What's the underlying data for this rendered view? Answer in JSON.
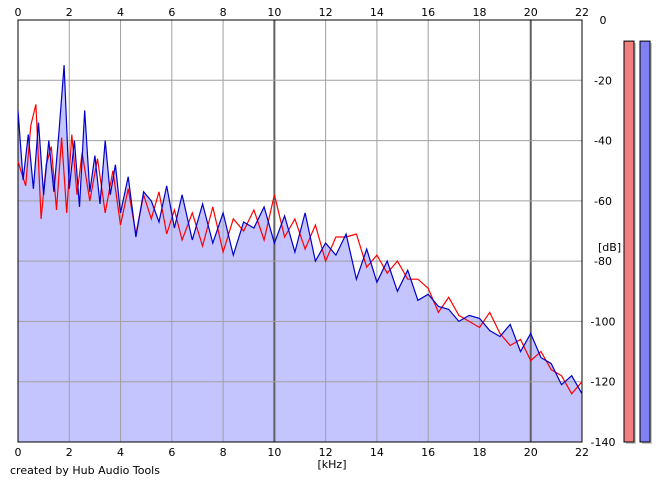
{
  "credit": "created by Hub Audio Tools",
  "chart_data": {
    "type": "area",
    "xlabel": "[kHz]",
    "ylabel": "[dB]",
    "xlim": [
      0,
      22
    ],
    "ylim": [
      -140,
      0
    ],
    "xticks": [
      0,
      2,
      4,
      6,
      8,
      10,
      12,
      14,
      16,
      18,
      20,
      22
    ],
    "yticks": [
      0,
      -20,
      -40,
      -60,
      -80,
      -100,
      -120,
      -140
    ],
    "grid": true,
    "colors": {
      "plot_background": "#c4c4ff",
      "upper_background": "#ffffff",
      "grid": "#a0a0a0",
      "red_series": "#ff0000",
      "blue_series": "#0000c8",
      "left_meter": "#f08080",
      "right_meter": "#8080f0"
    },
    "series": [
      {
        "color": "#ff0000",
        "x": [
          0.0,
          0.3,
          0.5,
          0.7,
          0.9,
          1.1,
          1.3,
          1.5,
          1.7,
          1.9,
          2.1,
          2.3,
          2.5,
          2.8,
          3.1,
          3.4,
          3.7,
          4.0,
          4.3,
          4.6,
          4.9,
          5.2,
          5.5,
          5.8,
          6.1,
          6.4,
          6.8,
          7.2,
          7.6,
          8.0,
          8.4,
          8.8,
          9.2,
          9.6,
          10.0,
          10.4,
          10.8,
          11.2,
          11.6,
          12.0,
          12.4,
          12.8,
          13.2,
          13.6,
          14.0,
          14.4,
          14.8,
          15.2,
          15.6,
          16.0,
          16.4,
          16.8,
          17.2,
          17.6,
          18.0,
          18.4,
          18.8,
          19.2,
          19.6,
          20.0,
          20.4,
          20.8,
          21.2,
          21.6,
          22.0
        ],
        "values": [
          -47,
          -55,
          -35,
          -28,
          -66,
          -48,
          -42,
          -63,
          -39,
          -64,
          -38,
          -58,
          -44,
          -60,
          -46,
          -64,
          -50,
          -68,
          -56,
          -71,
          -58,
          -66,
          -57,
          -71,
          -63,
          -73,
          -64,
          -75,
          -62,
          -77,
          -66,
          -70,
          -63,
          -73,
          -58,
          -72,
          -66,
          -76,
          -68,
          -80,
          -72,
          -72,
          -71,
          -82,
          -78,
          -84,
          -80,
          -86,
          -86,
          -89,
          -97,
          -92,
          -98,
          -100,
          -102,
          -97,
          -104,
          -108,
          -106,
          -113,
          -110,
          -116,
          -118,
          -124,
          -120
        ]
      },
      {
        "color": "#0000c8",
        "x": [
          0.0,
          0.2,
          0.4,
          0.6,
          0.8,
          1.0,
          1.2,
          1.4,
          1.6,
          1.8,
          2.0,
          2.2,
          2.4,
          2.6,
          2.8,
          3.0,
          3.2,
          3.4,
          3.6,
          3.8,
          4.0,
          4.3,
          4.6,
          4.9,
          5.2,
          5.5,
          5.8,
          6.1,
          6.4,
          6.8,
          7.2,
          7.6,
          8.0,
          8.4,
          8.8,
          9.2,
          9.6,
          10.0,
          10.4,
          10.8,
          11.2,
          11.6,
          12.0,
          12.4,
          12.8,
          13.2,
          13.6,
          14.0,
          14.4,
          14.8,
          15.2,
          15.6,
          16.0,
          16.4,
          16.8,
          17.2,
          17.6,
          18.0,
          18.4,
          18.8,
          19.2,
          19.6,
          20.0,
          20.4,
          20.8,
          21.2,
          21.6,
          22.0
        ],
        "values": [
          -30,
          -53,
          -38,
          -56,
          -34,
          -58,
          -40,
          -57,
          -37,
          -15,
          -56,
          -40,
          -62,
          -30,
          -57,
          -45,
          -61,
          -40,
          -58,
          -48,
          -64,
          -52,
          -72,
          -57,
          -60,
          -67,
          -55,
          -69,
          -58,
          -73,
          -61,
          -74,
          -64,
          -78,
          -67,
          -69,
          -62,
          -74,
          -65,
          -77,
          -64,
          -80,
          -74,
          -78,
          -71,
          -86,
          -76,
          -87,
          -80,
          -90,
          -83,
          -93,
          -91,
          -95,
          -96,
          -100,
          -98,
          -99,
          -103,
          -105,
          -101,
          -110,
          -104,
          -112,
          -114,
          -121,
          -118,
          -124
        ]
      }
    ],
    "level_meters": [
      {
        "color": "#f08080",
        "level_db": -7
      },
      {
        "color": "#8080f0",
        "level_db": -7
      }
    ]
  }
}
